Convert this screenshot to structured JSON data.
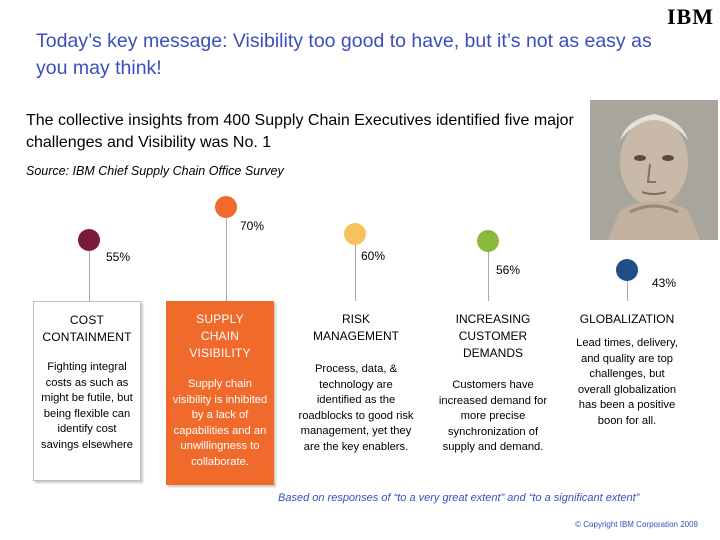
{
  "logo": "IBM",
  "title": "Today’s key message: Visibility too good to have, but it’s not as easy as you may think!",
  "subtitle": "The collective insights from 400 Supply Chain Executives identified five major challenges and Visibility was No. 1",
  "source": "Source: IBM Chief Supply Chain Office Survey",
  "photo": {
    "alt": "Portrait of an executive resting chin on hands"
  },
  "challenges": [
    {
      "percent": "55%",
      "heading": "COST CONTAINMENT",
      "description": "Fighting integral costs as such as might be futile, but being flexible can identify cost savings elsewhere",
      "color": "#7a1a3e"
    },
    {
      "percent": "70%",
      "heading": "SUPPLY CHAIN VISIBILITY",
      "description": "Supply chain visibility is inhibited by a lack of capabilities and an unwillingness to collaborate.",
      "color": "#f06a2c"
    },
    {
      "percent": "60%",
      "heading": "RISK MANAGEMENT",
      "description": "Process, data, & technology are identified as the roadblocks to good risk management, yet they are the key enablers.",
      "color": "#f7c25e"
    },
    {
      "percent": "56%",
      "heading": "INCREASING CUSTOMER DEMANDS",
      "description": "Customers have increased demand for more precise synchronization of supply and demand.",
      "color": "#8ab83a"
    },
    {
      "percent": "43%",
      "heading": "GLOBALIZATION",
      "description": "Lead times, delivery, and quality are top challenges, but overall globalization has been a positive boon for all.",
      "color": "#1f4f86"
    }
  ],
  "footnote": "Based on responses of “to a very great extent” and “to a significant extent”",
  "copyright": "© Copyright IBM Corporation 2009"
}
